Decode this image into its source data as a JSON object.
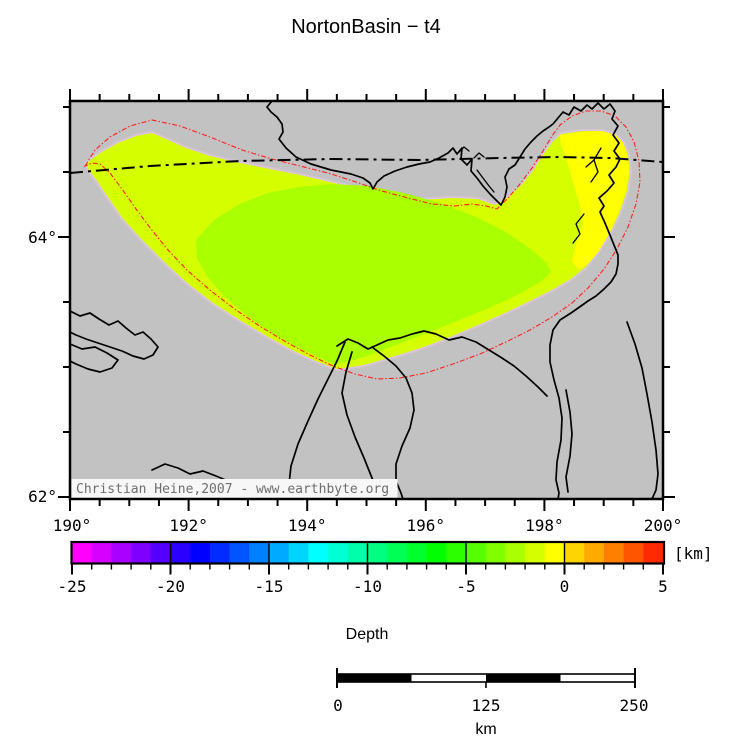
{
  "title": "NortonBasin − t4",
  "map": {
    "land_color": "#c2c2c2",
    "x_axis": {
      "labels": [
        "190°",
        "192°",
        "194°",
        "196°",
        "198°",
        "200°"
      ]
    },
    "y_axis": {
      "labels": [
        "64°",
        "62°"
      ]
    },
    "credit": "Christian Heine,2007 - www.earthbyte.org",
    "basin": {
      "outline_color": "#ff2020",
      "fringe_color": "#d9c4d9",
      "depth_zones": [
        {
          "name": "shallow-yellow-patch",
          "color": "#ffff00"
        },
        {
          "name": "outer-basin",
          "color": "#d5ff00"
        },
        {
          "name": "inner-basin",
          "color": "#aaff00"
        }
      ]
    }
  },
  "colorbar": {
    "unit": "[km]",
    "label": "Depth",
    "min": -25,
    "max": 5,
    "step": 1,
    "ticks": [
      "-25",
      "-20",
      "-15",
      "-10",
      "-5",
      "0",
      "5"
    ],
    "colors": [
      "#ff00ff",
      "#d500ff",
      "#aa00ff",
      "#8000ff",
      "#5500ff",
      "#2b00ff",
      "#0000ff",
      "#002bff",
      "#0055ff",
      "#0080ff",
      "#00aaff",
      "#00d5ff",
      "#00ffff",
      "#00ffd5",
      "#00ffaa",
      "#00ff80",
      "#00ff55",
      "#00ff2b",
      "#00ff00",
      "#2bff00",
      "#55ff00",
      "#80ff00",
      "#aaff00",
      "#d5ff00",
      "#ffff00",
      "#ffd500",
      "#ffaa00",
      "#ff8000",
      "#ff5500",
      "#ff2b00"
    ]
  },
  "scalebar": {
    "labels": [
      "0",
      "125",
      "250"
    ],
    "unit": "km"
  }
}
